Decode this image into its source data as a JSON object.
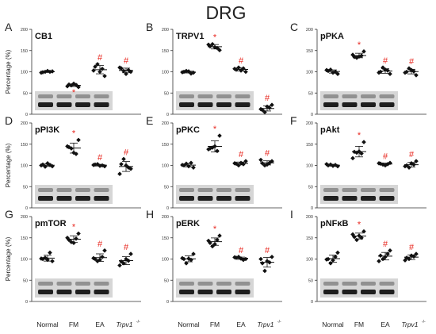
{
  "figure": {
    "title": "DRG",
    "ylabel": "Percentage (%)",
    "group_labels": [
      "Normal",
      "FM",
      "EA",
      "Trpv1",
      "-/-"
    ],
    "ticks_y": [
      "0",
      "50",
      "100",
      "150",
      "200"
    ],
    "sig_vs_normal": "*",
    "sig_vs_fm": "#"
  },
  "chart_data": [
    {
      "letter": "A",
      "title": "CB1",
      "type": "scatter",
      "categories": [
        "Normal",
        "FM",
        "EA",
        "Trpv1-/-"
      ],
      "ylim": [
        0,
        200
      ],
      "series": [
        {
          "values": [
            [
              99,
              101,
              100,
              100,
              102,
              98
            ],
            [
              70,
              64,
              68,
              69,
              72,
              66
            ],
            [
              112,
              90,
              118,
              107,
              100,
              103
            ],
            [
              108,
              100,
              102,
              104,
              95,
              110
            ]
          ]
        }
      ],
      "marks": [
        "",
        "*",
        "#",
        "#"
      ],
      "mark_below": [
        false,
        true,
        false,
        false
      ]
    },
    {
      "letter": "B",
      "title": "TRPV1",
      "type": "scatter",
      "categories": [
        "Normal",
        "FM",
        "EA",
        "Trpv1-/-"
      ],
      "ylim": [
        0,
        200
      ],
      "series": [
        {
          "values": [
            [
              100,
              98,
              102,
              96,
              101,
              99
            ],
            [
              160,
              151,
              165,
              156,
              158,
              164
            ],
            [
              105,
              100,
              110,
              108,
              103,
              107
            ],
            [
              10,
              22,
              5,
              15,
              18,
              12
            ]
          ]
        }
      ],
      "marks": [
        "",
        "*",
        "#",
        "#"
      ],
      "mark_below": [
        false,
        false,
        false,
        false
      ]
    },
    {
      "letter": "C",
      "title": "pPKA",
      "type": "scatter",
      "categories": [
        "Normal",
        "FM",
        "EA",
        "Trpv1-/-"
      ],
      "ylim": [
        0,
        200
      ],
      "series": [
        {
          "values": [
            [
              102,
              95,
              105,
              100,
              98,
              104
            ],
            [
              135,
              148,
              133,
              138,
              136,
              140
            ],
            [
              100,
              95,
              110,
              103,
              105,
              98
            ],
            [
              100,
              92,
              108,
              101,
              104,
              98
            ]
          ]
        }
      ],
      "marks": [
        "",
        "*",
        "#",
        "#"
      ],
      "mark_below": [
        false,
        false,
        false,
        false
      ]
    },
    {
      "letter": "D",
      "title": "pPI3K",
      "type": "scatter",
      "categories": [
        "Normal",
        "FM",
        "EA",
        "Trpv1-/-"
      ],
      "ylim": [
        0,
        200
      ],
      "series": [
        {
          "values": [
            [
              102,
              98,
              97,
              101,
              105,
              100
            ],
            [
              143,
              160,
              140,
              127,
              130,
              145
            ],
            [
              102,
              98,
              103,
              100,
              99,
              101
            ],
            [
              103,
              92,
              115,
              95,
              100,
              80
            ]
          ]
        }
      ],
      "marks": [
        "",
        "*",
        "#",
        "#"
      ],
      "mark_below": [
        false,
        false,
        false,
        false
      ]
    },
    {
      "letter": "E",
      "title": "pPKC",
      "type": "scatter",
      "categories": [
        "Normal",
        "FM",
        "EA",
        "Trpv1-/-"
      ],
      "ylim": [
        0,
        200
      ],
      "series": [
        {
          "values": [
            [
              100,
              95,
              104,
              106,
              98,
              101
            ],
            [
              140,
              170,
              142,
              134,
              145,
              138
            ],
            [
              104,
              110,
              100,
              103,
              106,
              105
            ],
            [
              105,
              110,
              100,
              106,
              102,
              113
            ]
          ]
        }
      ],
      "marks": [
        "",
        "*",
        "#",
        "#"
      ],
      "mark_below": [
        false,
        false,
        false,
        false
      ]
    },
    {
      "letter": "F",
      "title": "pAkt",
      "type": "scatter",
      "categories": [
        "Normal",
        "FM",
        "EA",
        "Trpv1-/-"
      ],
      "ylim": [
        0,
        200
      ],
      "series": [
        {
          "values": [
            [
              100,
              98,
              102,
              101,
              99,
              103
            ],
            [
              132,
              155,
              130,
              128,
              133,
              117
            ],
            [
              104,
              106,
              102,
              103,
              100,
              105
            ],
            [
              100,
              110,
              95,
              102,
              105,
              98
            ]
          ]
        }
      ],
      "marks": [
        "",
        "*",
        "#",
        "#"
      ],
      "mark_below": [
        false,
        false,
        false,
        false
      ]
    },
    {
      "letter": "G",
      "title": "pmTOR",
      "type": "scatter",
      "categories": [
        "Normal",
        "FM",
        "EA",
        "Trpv1-/-"
      ],
      "ylim": [
        0,
        200
      ],
      "series": [
        {
          "values": [
            [
              100,
              95,
              103,
              115,
              98,
              101
            ],
            [
              145,
              160,
              140,
              148,
              138,
              150
            ],
            [
              100,
              120,
              95,
              105,
              98,
              102
            ],
            [
              94,
              112,
              90,
              96,
              100,
              85
            ]
          ]
        }
      ],
      "marks": [
        "",
        "*",
        "#",
        "#"
      ],
      "mark_below": [
        false,
        false,
        false,
        false
      ]
    },
    {
      "letter": "H",
      "title": "pERK",
      "type": "scatter",
      "categories": [
        "Normal",
        "FM",
        "EA",
        "Trpv1-/-"
      ],
      "ylim": [
        0,
        200
      ],
      "series": [
        {
          "values": [
            [
              100,
              112,
              90,
              98,
              101,
              102
            ],
            [
              138,
              155,
              130,
              145,
              135,
              143
            ],
            [
              103,
              100,
              105,
              98,
              101,
              104
            ],
            [
              90,
              105,
              72,
              92,
              95,
              100
            ]
          ]
        }
      ],
      "marks": [
        "",
        "*",
        "#",
        "#"
      ],
      "mark_below": [
        false,
        false,
        false,
        false
      ]
    },
    {
      "letter": "I",
      "title": "pNFκB",
      "type": "scatter",
      "categories": [
        "Normal",
        "FM",
        "EA",
        "Trpv1-/-"
      ],
      "ylim": [
        0,
        200
      ],
      "series": [
        {
          "values": [
            [
              100,
              115,
              90,
              105,
              97,
              99
            ],
            [
              152,
              165,
              145,
              150,
              155,
              158
            ],
            [
              108,
              120,
              100,
              112,
              105,
              95
            ],
            [
              103,
              112,
              100,
              106,
              108,
              97
            ]
          ]
        }
      ],
      "marks": [
        "",
        "*",
        "#",
        "#"
      ],
      "mark_below": [
        false,
        false,
        false,
        false
      ]
    }
  ]
}
